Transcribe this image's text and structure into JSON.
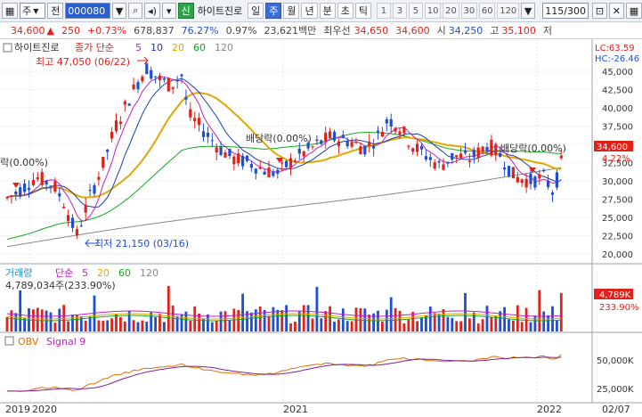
{
  "toolbar": {
    "mode_label": "주",
    "mode_btn": "전",
    "code_value": "000080",
    "stock_tag": "신",
    "stock_name": "하이트진로",
    "periods": [
      "일",
      "주",
      "월",
      "년",
      "분",
      "초",
      "틱"
    ],
    "active_period": "주",
    "numbers": [
      "1",
      "3",
      "5",
      "10",
      "20",
      "30",
      "60",
      "120"
    ],
    "count_value": "115",
    "count_total": "/300"
  },
  "quote": {
    "price": "34,600",
    "change": "250",
    "change_pct": "+0.73%",
    "volume": "678,837",
    "ratio": "76.27%",
    "turnover": "0.97%",
    "amount": "23,621백만",
    "prefer_label": "최우선",
    "ask": "34,650",
    "bid": "34,600",
    "open_label": "시",
    "open": "34,250",
    "high_label": "고",
    "high": "35,100",
    "low_label": "저"
  },
  "price_panel": {
    "legend_name": "하이트진로",
    "legend_ma": "종가 단순",
    "ma_periods": [
      {
        "label": "5",
        "color": "#c020c0"
      },
      {
        "label": "10",
        "color": "#1a3fb0"
      },
      {
        "label": "20",
        "color": "#e0a800"
      },
      {
        "label": "60",
        "color": "#13a81e"
      },
      {
        "label": "120",
        "color": "#888888"
      }
    ],
    "high_note": "최고 47,050 (06/22)",
    "low_note": "최저 21,150 (03/16)",
    "div1": "배당락(0.00%)",
    "div2": "배당락(0.00%)",
    "div3": "배당락(0.00%)",
    "lc": "LC:63.59",
    "hc": "HC:-26.46",
    "last_price_tag": "34,600",
    "last_pct_tag": "4.22%",
    "axis_ticks": [
      "45,000",
      "42,500",
      "40,000",
      "37,500",
      "35,000",
      "32,500",
      "30,000",
      "27,500",
      "25,000",
      "22,500",
      "20,000"
    ]
  },
  "volume_panel": {
    "title": "거래량",
    "ma_label": "단순",
    "ma_periods": [
      {
        "label": "5",
        "color": "#c020c0"
      },
      {
        "label": "20",
        "color": "#e0a800"
      },
      {
        "label": "60",
        "color": "#13a81e"
      },
      {
        "label": "120",
        "color": "#888888"
      }
    ],
    "value": "4,789,034주(233.90%)",
    "tag_value": "4,789K",
    "tag_pct": "233.90%"
  },
  "obv_panel": {
    "title": "OBV",
    "signal": "Signal 9",
    "axis_ticks": [
      "50,000K",
      "25,000K"
    ]
  },
  "x_axis": {
    "labels": [
      "2019",
      "2020",
      "2021",
      "2022",
      "02/07"
    ]
  },
  "colors": {
    "up": "#e0221b",
    "down": "#1f4fd1",
    "grid": "#d5dbe5"
  }
}
